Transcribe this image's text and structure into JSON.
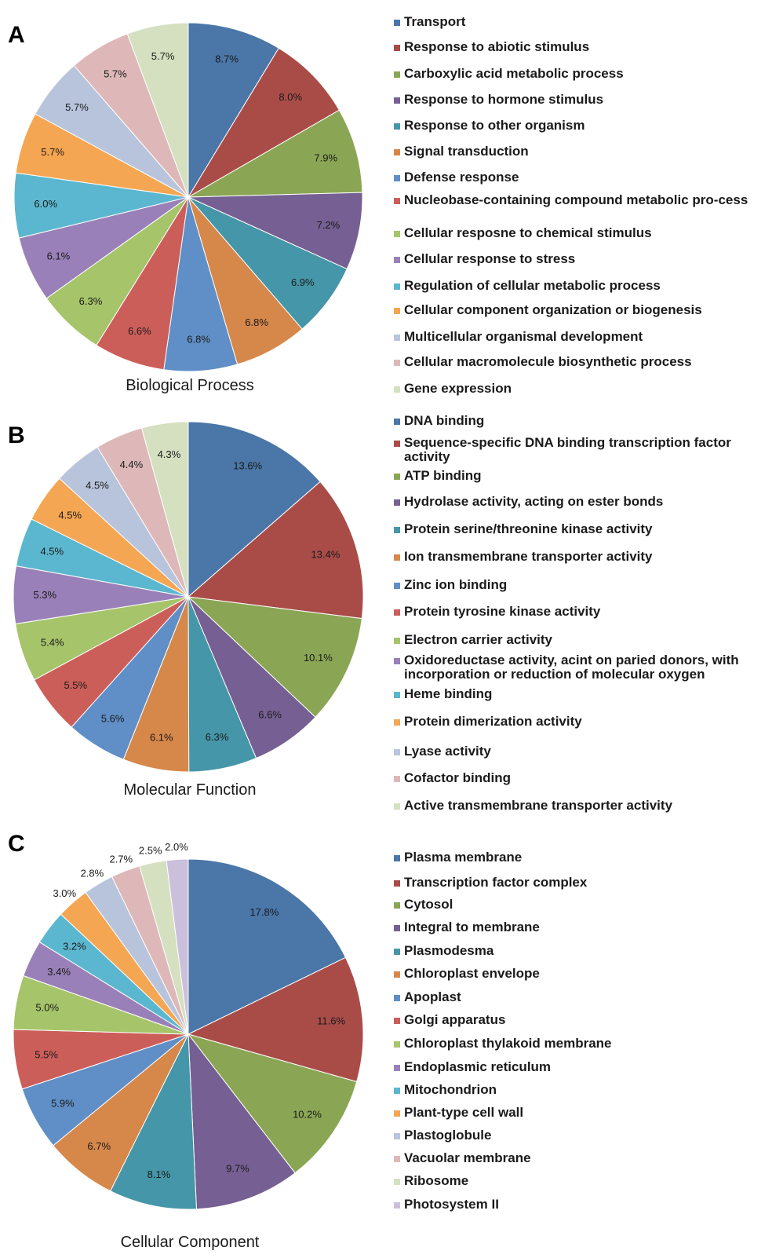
{
  "chart_data": [
    {
      "type": "pie",
      "panel": "A",
      "title": "Biological Process",
      "categories": [
        "Transport",
        "Response to abiotic stimulus",
        "Carboxylic acid metabolic process",
        "Response to hormone stimulus",
        "Response to other organism",
        "Signal transduction",
        "Defense response",
        "Nucleobase-containing compound metabolic pro-cess",
        "Cellular resposne to chemical stimulus",
        "Cellular response to stress",
        "Regulation of cellular metabolic process",
        "Cellular component organization or biogenesis",
        "Multicellular organismal development",
        "Cellular macromolecule biosynthetic process",
        "Gene expression"
      ],
      "values": [
        8.7,
        8.0,
        7.9,
        7.2,
        6.9,
        6.8,
        6.8,
        6.6,
        6.3,
        6.1,
        6.0,
        5.7,
        5.7,
        5.7,
        5.7
      ],
      "labels": [
        "8.7%",
        "8.0%",
        "7.9%",
        "7.2%",
        "6.9%",
        "6.8%",
        "6.8%",
        "6.6%",
        "6.3%",
        "6.1%",
        "6.0%",
        "5.7%",
        "5.7%",
        "5.7%",
        "5.7%"
      ],
      "colors": [
        "#4a76a8",
        "#a94c48",
        "#8aa654",
        "#765f92",
        "#4596a8",
        "#d6874a",
        "#5f8fc6",
        "#cc5e5a",
        "#a6c46a",
        "#9a80b8",
        "#5bb7cf",
        "#f5a652",
        "#b8c4dc",
        "#deb8b8",
        "#d4e0c0"
      ],
      "legend_position": "right"
    },
    {
      "type": "pie",
      "panel": "B",
      "title": "Molecular Function",
      "categories": [
        "DNA binding",
        "Sequence-specific DNA binding transcription factor activity",
        "ATP binding",
        "Hydrolase activity, acting on ester bonds",
        "Protein serine/threonine kinase activity",
        "Ion transmembrane transporter activity",
        "Zinc ion binding",
        "Protein tyrosine kinase activity",
        "Electron carrier activity",
        "Oxidoreductase activity, acint on paried donors, with incorporation or reduction of molecular oxygen",
        "Heme binding",
        "Protein dimerization activity",
        "Lyase activity",
        "Cofactor binding",
        "Active transmembrane transporter activity"
      ],
      "values": [
        13.6,
        13.4,
        10.1,
        6.6,
        6.3,
        6.1,
        5.6,
        5.5,
        5.4,
        5.3,
        4.5,
        4.5,
        4.5,
        4.4,
        4.3
      ],
      "labels": [
        "13.6%",
        "13.4%",
        "10.1%",
        "6.6%",
        "6.3%",
        "6.1%",
        "5.6%",
        "5.5%",
        "5.4%",
        "5.3%",
        "4.5%",
        "4.5%",
        "4.5%",
        "4.4%",
        "4.3%"
      ],
      "colors": [
        "#4a76a8",
        "#a94c48",
        "#8aa654",
        "#765f92",
        "#4596a8",
        "#d6874a",
        "#5f8fc6",
        "#cc5e5a",
        "#a6c46a",
        "#9a80b8",
        "#5bb7cf",
        "#f5a652",
        "#b8c4dc",
        "#deb8b8",
        "#d4e0c0"
      ],
      "legend_position": "right"
    },
    {
      "type": "pie",
      "panel": "C",
      "title": "Cellular Component",
      "categories": [
        "Plasma membrane",
        "Transcription factor complex",
        "Cytosol",
        "Integral to membrane",
        "Plasmodesma",
        "Chloroplast envelope",
        "Apoplast",
        "Golgi apparatus",
        "Chloroplast thylakoid membrane",
        "Endoplasmic reticulum",
        "Mitochondrion",
        "Plant-type cell wall",
        "Plastoglobule",
        "Vacuolar membrane",
        "Ribosome",
        "Photosystem II"
      ],
      "values": [
        17.8,
        11.6,
        10.2,
        9.7,
        8.1,
        6.7,
        5.9,
        5.5,
        5.0,
        3.4,
        3.2,
        3.0,
        2.8,
        2.7,
        2.5,
        2.0
      ],
      "labels": [
        "17.8%",
        "11.6%",
        "10.2%",
        "9.7%",
        "8.1%",
        "6.7%",
        "5.9%",
        "5.5%",
        "5.0%",
        "3.4%",
        "3.2%",
        "3.0%",
        "2.8%",
        "2.7%",
        "2.5%",
        "2.0%"
      ],
      "colors": [
        "#4a76a8",
        "#a94c48",
        "#8aa654",
        "#765f92",
        "#4596a8",
        "#d6874a",
        "#5f8fc6",
        "#cc5e5a",
        "#a6c46a",
        "#9a80b8",
        "#5bb7cf",
        "#f5a652",
        "#b8c4dc",
        "#deb8b8",
        "#d4e0c0",
        "#cbc0dc"
      ],
      "legend_position": "right"
    }
  ]
}
